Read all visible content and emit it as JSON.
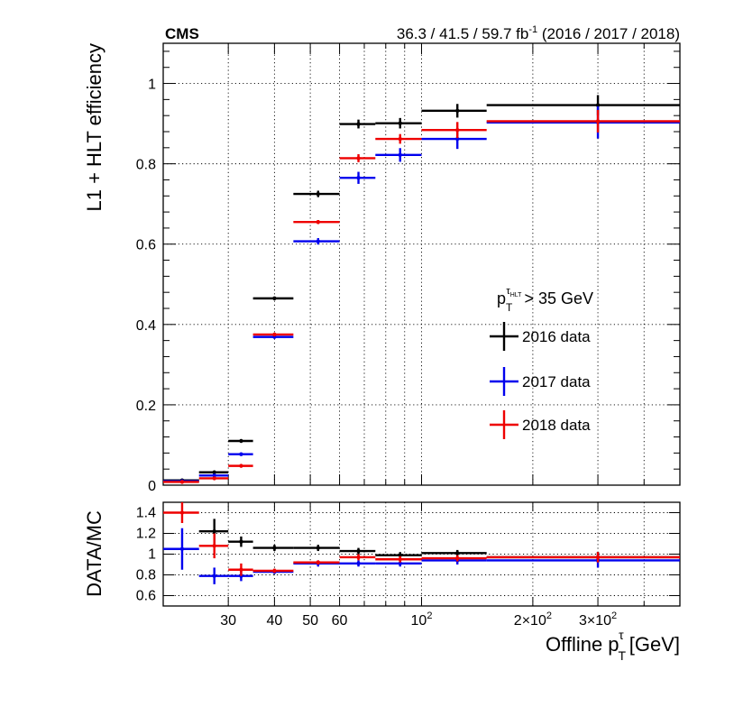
{
  "chart_data": [
    {
      "type": "scatter",
      "panel": "efficiency",
      "experiment_label": "CMS",
      "lumi_label": {
        "prefix": "36.3 / 41.5 / 59.7 fb",
        "superscript": "-1",
        "suffix": " (2016 / 2017 / 2018)"
      },
      "ylabel": "L1 + HLT efficiency",
      "xscale": "log",
      "xlim": [
        20,
        500
      ],
      "ylim": [
        0,
        1.1
      ],
      "yticks": [
        0,
        0.2,
        0.4,
        0.6,
        0.8,
        1
      ],
      "ytick_labels": [
        "0",
        "0.2",
        "0.4",
        "0.6",
        "0.8",
        "1"
      ],
      "legend": {
        "title_main": "p",
        "title_sub": "T",
        "title_sup_main": "τ",
        "title_sup_sub": "HLT",
        "title_cut": "> 35 GeV",
        "entries": [
          "2016 data",
          "2017 data",
          "2018 data"
        ]
      },
      "series": [
        {
          "name": "2016 data",
          "color": "#000000",
          "bins": [
            [
              20,
              25
            ],
            [
              25,
              30
            ],
            [
              30,
              35
            ],
            [
              35,
              45
            ],
            [
              45,
              60
            ],
            [
              60,
              75
            ],
            [
              75,
              100
            ],
            [
              100,
              150
            ],
            [
              150,
              500
            ]
          ],
          "x": [
            22.5,
            27.5,
            32.5,
            40,
            52.5,
            67.5,
            87.5,
            125,
            300
          ],
          "y": [
            0.012,
            0.032,
            0.11,
            0.465,
            0.725,
            0.899,
            0.901,
            0.932,
            0.946
          ],
          "yerr": [
            0.003,
            0.004,
            0.004,
            0.004,
            0.008,
            0.011,
            0.013,
            0.017,
            0.025
          ]
        },
        {
          "name": "2017 data",
          "color": "#0000ee",
          "bins": [
            [
              20,
              25
            ],
            [
              25,
              30
            ],
            [
              30,
              35
            ],
            [
              35,
              45
            ],
            [
              45,
              60
            ],
            [
              60,
              75
            ],
            [
              75,
              100
            ],
            [
              100,
              150
            ],
            [
              150,
              500
            ]
          ],
          "x": [
            22.5,
            27.5,
            32.5,
            40,
            52.5,
            67.5,
            87.5,
            125,
            300
          ],
          "y": [
            0.01,
            0.024,
            0.077,
            0.369,
            0.607,
            0.765,
            0.822,
            0.862,
            0.903
          ],
          "yerr": [
            0.003,
            0.003,
            0.003,
            0.004,
            0.008,
            0.015,
            0.017,
            0.025,
            0.04
          ]
        },
        {
          "name": "2018 data",
          "color": "#ee0000",
          "bins": [
            [
              20,
              25
            ],
            [
              25,
              30
            ],
            [
              30,
              35
            ],
            [
              35,
              45
            ],
            [
              45,
              60
            ],
            [
              60,
              75
            ],
            [
              75,
              100
            ],
            [
              100,
              150
            ],
            [
              150,
              500
            ]
          ],
          "x": [
            22.5,
            27.5,
            32.5,
            40,
            52.5,
            67.5,
            87.5,
            125,
            300
          ],
          "y": [
            0.008,
            0.017,
            0.048,
            0.375,
            0.655,
            0.814,
            0.862,
            0.884,
            0.906
          ],
          "yerr": [
            0.002,
            0.002,
            0.003,
            0.004,
            0.005,
            0.01,
            0.012,
            0.02,
            0.028
          ]
        }
      ]
    },
    {
      "type": "scatter",
      "panel": "ratio",
      "ylabel": "DATA/MC",
      "xlabel_main": "Offline p",
      "xlabel_sub": "T",
      "xlabel_sup": "τ",
      "xlabel_unit": " [GeV]",
      "xscale": "log",
      "xlim": [
        20,
        500
      ],
      "ylim": [
        0.5,
        1.5
      ],
      "yticks": [
        0.6,
        0.8,
        1,
        1.2,
        1.4
      ],
      "ytick_labels": [
        "0.6",
        "0.8",
        "1",
        "1.2",
        "1.4"
      ],
      "xticks": [
        {
          "value": 30,
          "label": "30"
        },
        {
          "value": 40,
          "label": "40"
        },
        {
          "value": 50,
          "label": "50"
        },
        {
          "value": 60,
          "label": "60"
        },
        {
          "value": 100,
          "label": "10",
          "sup": "2"
        },
        {
          "value": 200,
          "label": "2×10",
          "sup": "2"
        },
        {
          "value": 300,
          "label": "3×10",
          "sup": "2"
        }
      ],
      "series": [
        {
          "name": "2016 data",
          "color": "#000000",
          "bins": [
            [
              25,
              30
            ],
            [
              30,
              35
            ],
            [
              35,
              45
            ],
            [
              45,
              60
            ],
            [
              60,
              75
            ],
            [
              75,
              100
            ],
            [
              100,
              150
            ],
            [
              150,
              500
            ]
          ],
          "x": [
            27.5,
            32.5,
            40,
            52.5,
            67.5,
            87.5,
            125,
            300
          ],
          "y": [
            1.22,
            1.12,
            1.06,
            1.06,
            1.03,
            0.99,
            1.01,
            0.97
          ],
          "yerr": [
            0.12,
            0.05,
            0.03,
            0.03,
            0.03,
            0.03,
            0.03,
            0.05
          ]
        },
        {
          "name": "2017 data",
          "color": "#0000ee",
          "bins": [
            [
              20,
              25
            ],
            [
              25,
              30
            ],
            [
              30,
              35
            ],
            [
              35,
              45
            ],
            [
              45,
              60
            ],
            [
              60,
              75
            ],
            [
              75,
              100
            ],
            [
              100,
              150
            ],
            [
              150,
              500
            ]
          ],
          "x": [
            22.5,
            27.5,
            32.5,
            40,
            52.5,
            67.5,
            87.5,
            125,
            300
          ],
          "y": [
            1.05,
            0.79,
            0.79,
            0.83,
            0.91,
            0.91,
            0.91,
            0.94,
            0.94
          ],
          "yerr": [
            0.2,
            0.08,
            0.05,
            0.02,
            0.03,
            0.03,
            0.03,
            0.04,
            0.07
          ]
        },
        {
          "name": "2018 data",
          "color": "#ee0000",
          "bins": [
            [
              20,
              25
            ],
            [
              25,
              30
            ],
            [
              30,
              35
            ],
            [
              35,
              45
            ],
            [
              45,
              60
            ],
            [
              60,
              75
            ],
            [
              75,
              100
            ],
            [
              100,
              150
            ],
            [
              150,
              500
            ]
          ],
          "x": [
            22.5,
            27.5,
            32.5,
            40,
            52.5,
            67.5,
            87.5,
            125,
            300
          ],
          "y": [
            1.4,
            1.08,
            0.85,
            0.84,
            0.92,
            0.97,
            0.95,
            0.96,
            0.97
          ],
          "yerr": [
            0.1,
            0.12,
            0.06,
            0.02,
            0.02,
            0.03,
            0.03,
            0.03,
            0.05
          ]
        }
      ]
    }
  ]
}
